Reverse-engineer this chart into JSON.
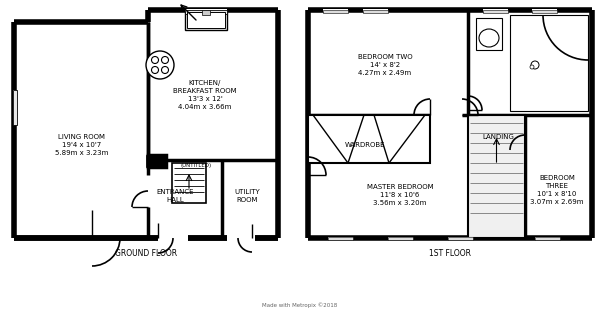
{
  "bg_color": "#ffffff",
  "footer_text": "Made with Metropix ©2018",
  "ground_floor_label": "GROUND FLOOR",
  "first_floor_label": "1ST FLOOR"
}
